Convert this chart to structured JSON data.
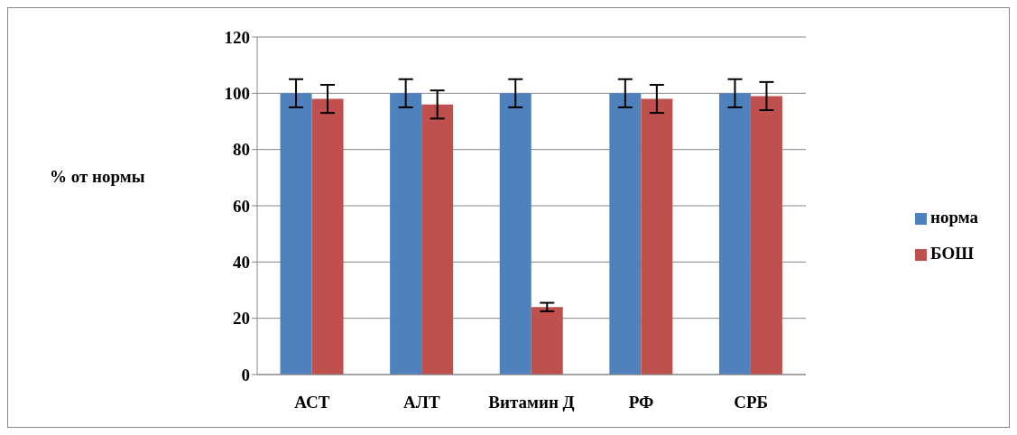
{
  "chart_data": {
    "type": "bar",
    "ylabel": "% от нормы",
    "categories": [
      "АСТ",
      "АЛТ",
      "Витамин Д",
      "РФ",
      "СРБ"
    ],
    "series": [
      {
        "name": "норма",
        "color": "#4f81bd",
        "values": [
          100,
          100,
          100,
          100,
          100
        ],
        "errors": [
          5,
          5,
          5,
          5,
          5
        ]
      },
      {
        "name": "БОШ",
        "color": "#c0504d",
        "values": [
          98,
          96,
          24,
          98,
          99
        ],
        "errors": [
          5,
          5,
          1.5,
          5,
          5
        ]
      }
    ],
    "ylim": [
      0,
      120
    ],
    "yticks": [
      0,
      20,
      40,
      60,
      80,
      100,
      120
    ],
    "grid": "y",
    "legend": "right"
  }
}
